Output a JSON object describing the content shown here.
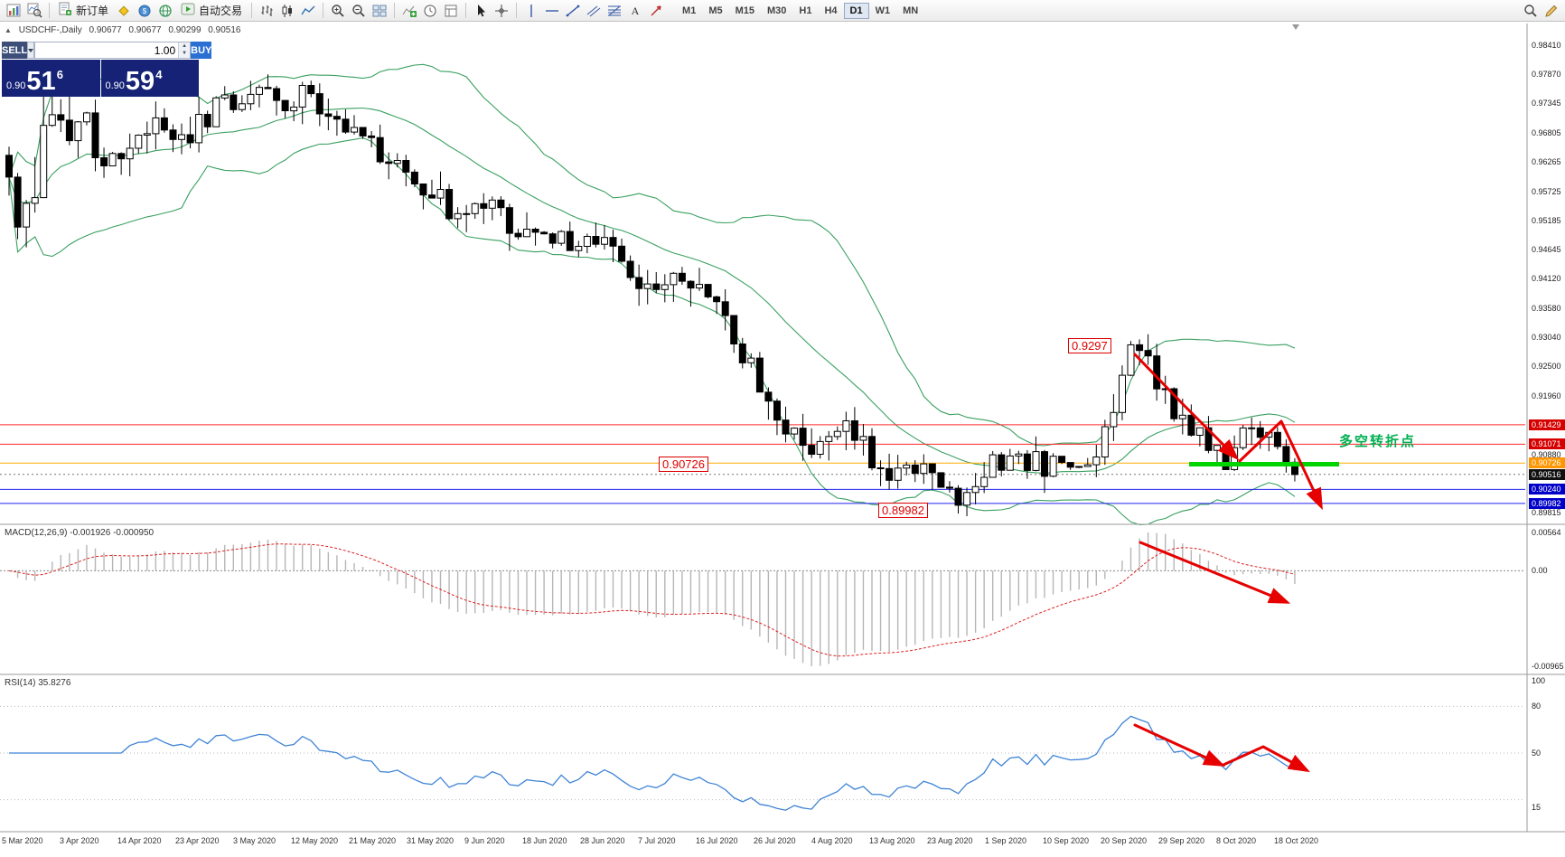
{
  "toolbar": {
    "new_order_label": "新订单",
    "autotrading_label": "自动交易",
    "timeframes": [
      "M1",
      "M5",
      "M15",
      "M30",
      "H1",
      "H4",
      "D1",
      "W1",
      "MN"
    ],
    "active_timeframe": "D1"
  },
  "info_line": {
    "marker": "▲",
    "symbol": "USDCHF-,Daily",
    "open": "0.90677",
    "high": "0.90677",
    "low": "0.90299",
    "close": "0.90516"
  },
  "trade_panel": {
    "sell_label": "SELL",
    "buy_label": "BUY",
    "lot_value": "1.00",
    "sell_price": {
      "prefix": "0.90",
      "big": "51",
      "sup": "6"
    },
    "buy_price": {
      "prefix": "0.90",
      "big": "59",
      "sup": "4"
    }
  },
  "annotations": {
    "peak_label": "0.9297",
    "support_label": "0.90726",
    "low_label": "0.89982",
    "turning_point_label": "多空转折点"
  },
  "macd_panel": {
    "label": "MACD(12,26,9) -0.001926 -0.000950",
    "scale_top": "0.00564",
    "scale_zero": "0.00",
    "scale_bottom": "-0.00965"
  },
  "rsi_panel": {
    "label": "RSI(14) 35.8276",
    "scale_top": "100",
    "scale_80": "80",
    "scale_50": "50",
    "scale_bottom": "15"
  },
  "date_axis": [
    "5 Mar 2020",
    "3 Apr 2020",
    "14 Apr 2020",
    "23 Apr 2020",
    "3 May 2020",
    "12 May 2020",
    "21 May 2020",
    "31 May 2020",
    "9 Jun 2020",
    "18 Jun 2020",
    "28 Jun 2020",
    "7 Jul 2020",
    "16 Jul 2020",
    "26 Jul 2020",
    "4 Aug 2020",
    "13 Aug 2020",
    "23 Aug 2020",
    "1 Sep 2020",
    "10 Sep 2020",
    "20 Sep 2020",
    "29 Sep 2020",
    "8 Oct 2020",
    "18 Oct 2020"
  ],
  "chart_data": {
    "type": "candlestick",
    "symbol": "USDCHF",
    "timeframe": "Daily",
    "current_bid": 0.90516,
    "candle_count": 150,
    "price_axis": [
      0.9841,
      0.9787,
      0.97345,
      0.96805,
      0.96265,
      0.95725,
      0.95185,
      0.94645,
      0.9412,
      0.9358,
      0.9304,
      0.925,
      0.9196,
      0.9088,
      0.89815
    ],
    "badge_levels": [
      {
        "price": 0.91429,
        "color": "#d60000"
      },
      {
        "price": 0.91071,
        "color": "#d60000"
      },
      {
        "price": 0.90726,
        "color": "#ff9500"
      },
      {
        "price": 0.90516,
        "color": "#101010"
      },
      {
        "price": 0.9024,
        "color": "#0000c8"
      },
      {
        "price": 0.89982,
        "color": "#0000c8"
      }
    ],
    "hlines": [
      {
        "price": 0.91429,
        "color": "#ff2a2a"
      },
      {
        "price": 0.91071,
        "color": "#ff2a2a"
      },
      {
        "price": 0.90726,
        "color": "#ffaa00"
      },
      {
        "price": 0.9024,
        "color": "#2222ee"
      },
      {
        "price": 0.89982,
        "color": "#2222ee"
      }
    ],
    "indicators": {
      "bollinger": {
        "name": "Bollinger Bands",
        "period": 20,
        "deviation": 2,
        "color": "#3aa060"
      },
      "macd": {
        "name": "MACD",
        "fast": 12,
        "slow": 26,
        "signal": 9,
        "value": -0.001926,
        "signal_value": -0.00095
      },
      "rsi": {
        "name": "RSI",
        "period": 14,
        "value": 35.8276
      }
    },
    "close_anchors": [
      [
        0.0,
        0.96
      ],
      [
        0.008,
        0.952
      ],
      [
        0.025,
        0.9635
      ],
      [
        0.048,
        0.97
      ],
      [
        0.071,
        0.9658
      ],
      [
        0.094,
        0.964
      ],
      [
        0.11,
        0.9688
      ],
      [
        0.137,
        0.9665
      ],
      [
        0.16,
        0.972
      ],
      [
        0.19,
        0.9762
      ],
      [
        0.21,
        0.9726
      ],
      [
        0.23,
        0.975
      ],
      [
        0.25,
        0.9722
      ],
      [
        0.27,
        0.969
      ],
      [
        0.29,
        0.9642
      ],
      [
        0.31,
        0.96
      ],
      [
        0.33,
        0.956
      ],
      [
        0.35,
        0.9528
      ],
      [
        0.37,
        0.9552
      ],
      [
        0.39,
        0.9512
      ],
      [
        0.41,
        0.9506
      ],
      [
        0.43,
        0.9478
      ],
      [
        0.45,
        0.9502
      ],
      [
        0.47,
        0.9448
      ],
      [
        0.49,
        0.9402
      ],
      [
        0.51,
        0.942
      ],
      [
        0.53,
        0.9406
      ],
      [
        0.55,
        0.9352
      ],
      [
        0.57,
        0.9282
      ],
      [
        0.59,
        0.918
      ],
      [
        0.61,
        0.9122
      ],
      [
        0.625,
        0.9105
      ],
      [
        0.64,
        0.9142
      ],
      [
        0.66,
        0.912
      ],
      [
        0.68,
        0.9062
      ],
      [
        0.7,
        0.9078
      ],
      [
        0.72,
        0.9042
      ],
      [
        0.74,
        0.9012
      ],
      [
        0.76,
        0.9066
      ],
      [
        0.78,
        0.909
      ],
      [
        0.8,
        0.9072
      ],
      [
        0.82,
        0.9062
      ],
      [
        0.84,
        0.9076
      ],
      [
        0.86,
        0.918
      ],
      [
        0.875,
        0.9292
      ],
      [
        0.89,
        0.9232
      ],
      [
        0.91,
        0.9162
      ],
      [
        0.93,
        0.9112
      ],
      [
        0.945,
        0.9068
      ],
      [
        0.962,
        0.914
      ],
      [
        0.978,
        0.9128
      ],
      [
        0.99,
        0.9062
      ],
      [
        1.0,
        0.9052
      ]
    ],
    "peak_price": 0.9297
  }
}
